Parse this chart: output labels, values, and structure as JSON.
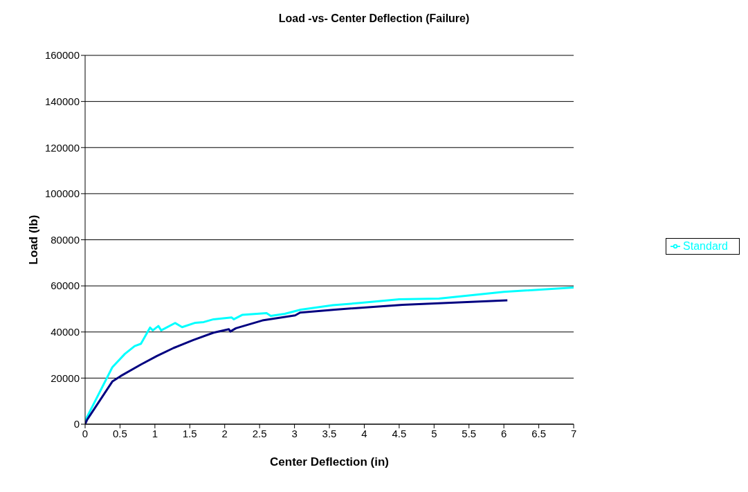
{
  "chart_data": {
    "type": "line",
    "title": "Load -vs- Center Deflection (Failure)",
    "xlabel": "Center Deflection (in)",
    "ylabel": "Load (lb)",
    "xlim": [
      0,
      7
    ],
    "xticks": [
      0,
      0.5,
      1,
      1.5,
      2,
      2.5,
      3,
      3.5,
      4,
      4.5,
      5,
      5.5,
      6,
      6.5,
      7
    ],
    "ylim": [
      0,
      160000
    ],
    "yticks": [
      0,
      20000,
      40000,
      60000,
      80000,
      100000,
      120000,
      140000,
      160000
    ],
    "grid": "y",
    "legend": "right",
    "marker": "none",
    "line_style": "solid",
    "series": [
      {
        "name": "Standard",
        "color": "#00ffff",
        "x": [
          0,
          0.39,
          0.57,
          0.71,
          0.8,
          0.93,
          0.97,
          1.05,
          1.09,
          1.29,
          1.39,
          1.58,
          1.7,
          1.84,
          2.1,
          2.13,
          2.25,
          2.6,
          2.66,
          2.86,
          3.09,
          3.55,
          3.94,
          4.5,
          5.07,
          6,
          7
        ],
        "values": [
          1500,
          24700,
          30500,
          33900,
          34900,
          41900,
          40700,
          42600,
          40700,
          43900,
          42100,
          44000,
          44300,
          45500,
          46300,
          45500,
          47400,
          48200,
          47000,
          47900,
          49700,
          51600,
          52600,
          54200,
          54500,
          57400,
          59300
        ]
      },
      {
        "color": "#000080",
        "x": [
          0,
          0.03,
          0.39,
          0.51,
          0.8,
          1.03,
          1.27,
          1.55,
          1.84,
          2.06,
          2.08,
          2.16,
          2.54,
          3.01,
          3.08,
          3.58,
          4.55,
          6.05
        ],
        "values": [
          0,
          2000,
          18500,
          20900,
          25900,
          29600,
          33100,
          36500,
          39700,
          41200,
          40200,
          41600,
          45000,
          47200,
          48400,
          49700,
          51800,
          53700
        ]
      }
    ]
  }
}
